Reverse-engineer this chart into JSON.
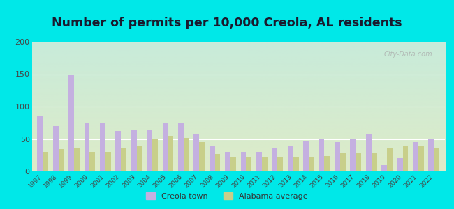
{
  "title": "Number of permits per 10,000 Creola, AL residents",
  "years": [
    1997,
    1998,
    1999,
    2000,
    2001,
    2002,
    2003,
    2004,
    2005,
    2006,
    2007,
    2008,
    2009,
    2010,
    2011,
    2012,
    2013,
    2014,
    2015,
    2016,
    2017,
    2018,
    2019,
    2020,
    2021,
    2022
  ],
  "creola": [
    85,
    70,
    150,
    75,
    75,
    62,
    65,
    65,
    75,
    75,
    57,
    40,
    30,
    30,
    30,
    35,
    40,
    46,
    50,
    45,
    50,
    57,
    10,
    20,
    45,
    50
  ],
  "alabama": [
    30,
    34,
    35,
    30,
    30,
    35,
    40,
    50,
    55,
    52,
    45,
    27,
    22,
    21,
    21,
    21,
    21,
    22,
    24,
    28,
    29,
    29,
    36,
    40,
    40,
    35
  ],
  "creola_color": "#c4b0e0",
  "alabama_color": "#c8cf8a",
  "bg_outer": "#00e8e8",
  "ylim": [
    0,
    200
  ],
  "yticks": [
    0,
    50,
    100,
    150,
    200
  ],
  "title_fontsize": 12.5,
  "title_color": "#1a1a2e",
  "legend_labels": [
    "Creola town",
    "Alabama average"
  ],
  "watermark": "City-Data.com",
  "bar_width": 0.35
}
